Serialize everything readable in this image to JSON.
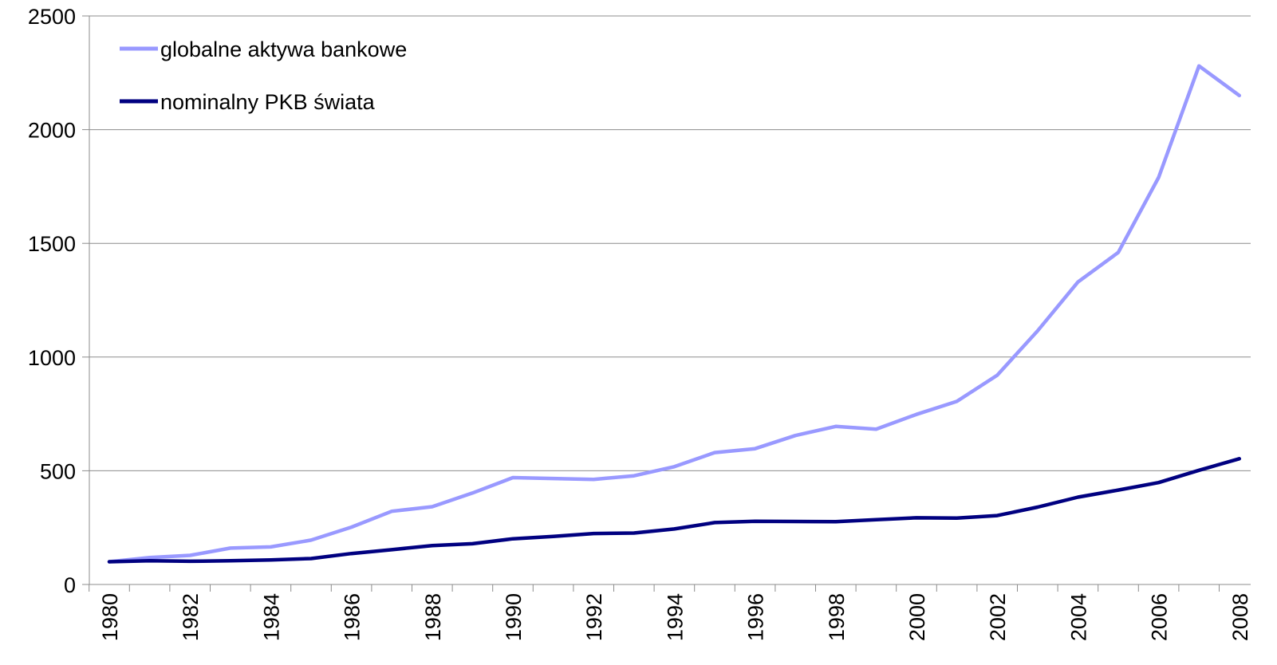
{
  "chart_data": {
    "type": "line",
    "title": "",
    "xlabel": "",
    "ylabel": "",
    "x": [
      1980,
      1981,
      1982,
      1983,
      1984,
      1985,
      1986,
      1987,
      1988,
      1989,
      1990,
      1991,
      1992,
      1993,
      1994,
      1995,
      1996,
      1997,
      1998,
      1999,
      2000,
      2001,
      2002,
      2003,
      2004,
      2005,
      2006,
      2007,
      2008
    ],
    "x_tick_labels": [
      "1980",
      "1982",
      "1984",
      "1986",
      "1988",
      "1990",
      "1992",
      "1994",
      "1996",
      "1998",
      "2000",
      "2002",
      "2004",
      "2006",
      "2008"
    ],
    "ylim": [
      0,
      2500
    ],
    "y_ticks": [
      0,
      500,
      1000,
      1500,
      2000,
      2500
    ],
    "y_tick_labels": [
      "0",
      "500",
      "1000",
      "1500",
      "2000",
      "2500"
    ],
    "grid": "horizontal",
    "legend_position": "top-left",
    "series": [
      {
        "name": "globalne aktywa bankowe",
        "color": "#9999ff",
        "values": [
          100,
          118,
          128,
          160,
          165,
          195,
          252,
          322,
          342,
          402,
          470,
          466,
          462,
          478,
          518,
          580,
          597,
          655,
          695,
          683,
          748,
          805,
          920,
          1115,
          1330,
          1460,
          1790,
          2280,
          2150
        ]
      },
      {
        "name": "nominalny PKB świata",
        "color": "#000080",
        "values": [
          100,
          104,
          102,
          104,
          108,
          114,
          136,
          153,
          171,
          179,
          201,
          211,
          224,
          226,
          244,
          272,
          278,
          277,
          276,
          285,
          293,
          292,
          303,
          340,
          384,
          415,
          448,
          502,
          553
        ]
      }
    ]
  }
}
